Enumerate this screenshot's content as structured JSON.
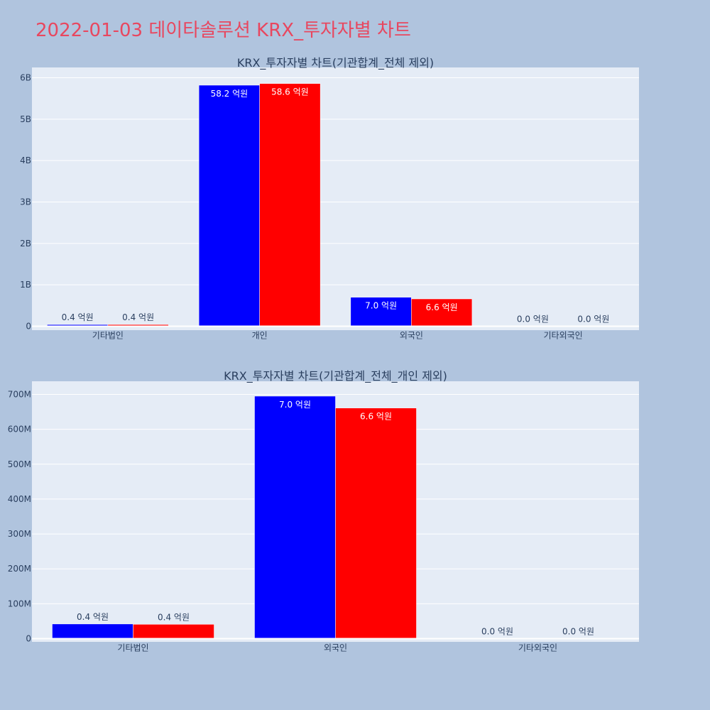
{
  "page": {
    "title": "2022-01-03 데이타솔루션 KRX_투자자별 차트",
    "background": "#b0c4de",
    "title_color": "#e8475f",
    "plot_background": "#e5ecf6"
  },
  "chart_data": [
    {
      "type": "bar",
      "title": "KRX_투자자별 차트(기관합계_전체 제외)",
      "categories": [
        "기타법인",
        "개인",
        "외국인",
        "기타외국인"
      ],
      "series": [
        {
          "color": "#0000ff",
          "values": [
            40000000,
            5820000000,
            700000000,
            0
          ],
          "labels": [
            "0.4 억원",
            "58.2 억원",
            "7.0 억원",
            "0.0 억원"
          ]
        },
        {
          "color": "#ff0000",
          "values": [
            40000000,
            5860000000,
            660000000,
            0
          ],
          "labels": [
            "0.4 억원",
            "58.6 억원",
            "6.6 억원",
            "0.0 억원"
          ]
        }
      ],
      "ylim": [
        0,
        6000000000
      ],
      "yticks": [
        0,
        1000000000,
        2000000000,
        3000000000,
        4000000000,
        5000000000,
        6000000000
      ],
      "ytick_labels": [
        "0",
        "1B",
        "2B",
        "3B",
        "4B",
        "5B",
        "6B"
      ],
      "xlabel": "",
      "ylabel": "",
      "grid": true
    },
    {
      "type": "bar",
      "title": "KRX_투자자별 차트(기관합계_전체_개인 제외)",
      "categories": [
        "기타법인",
        "외국인",
        "기타외국인"
      ],
      "series": [
        {
          "color": "#0000ff",
          "values": [
            42000000,
            695000000,
            0
          ],
          "labels": [
            "0.4 억원",
            "7.0 억원",
            "0.0 억원"
          ]
        },
        {
          "color": "#ff0000",
          "values": [
            41000000,
            661000000,
            0
          ],
          "labels": [
            "0.4 억원",
            "6.6 억원",
            "0.0 억원"
          ]
        }
      ],
      "ylim": [
        0,
        700000000
      ],
      "yticks": [
        0,
        100000000,
        200000000,
        300000000,
        400000000,
        500000000,
        600000000,
        700000000
      ],
      "ytick_labels": [
        "0",
        "100M",
        "200M",
        "300M",
        "400M",
        "500M",
        "600M",
        "700M"
      ],
      "xlabel": "",
      "ylabel": "",
      "grid": true
    }
  ]
}
